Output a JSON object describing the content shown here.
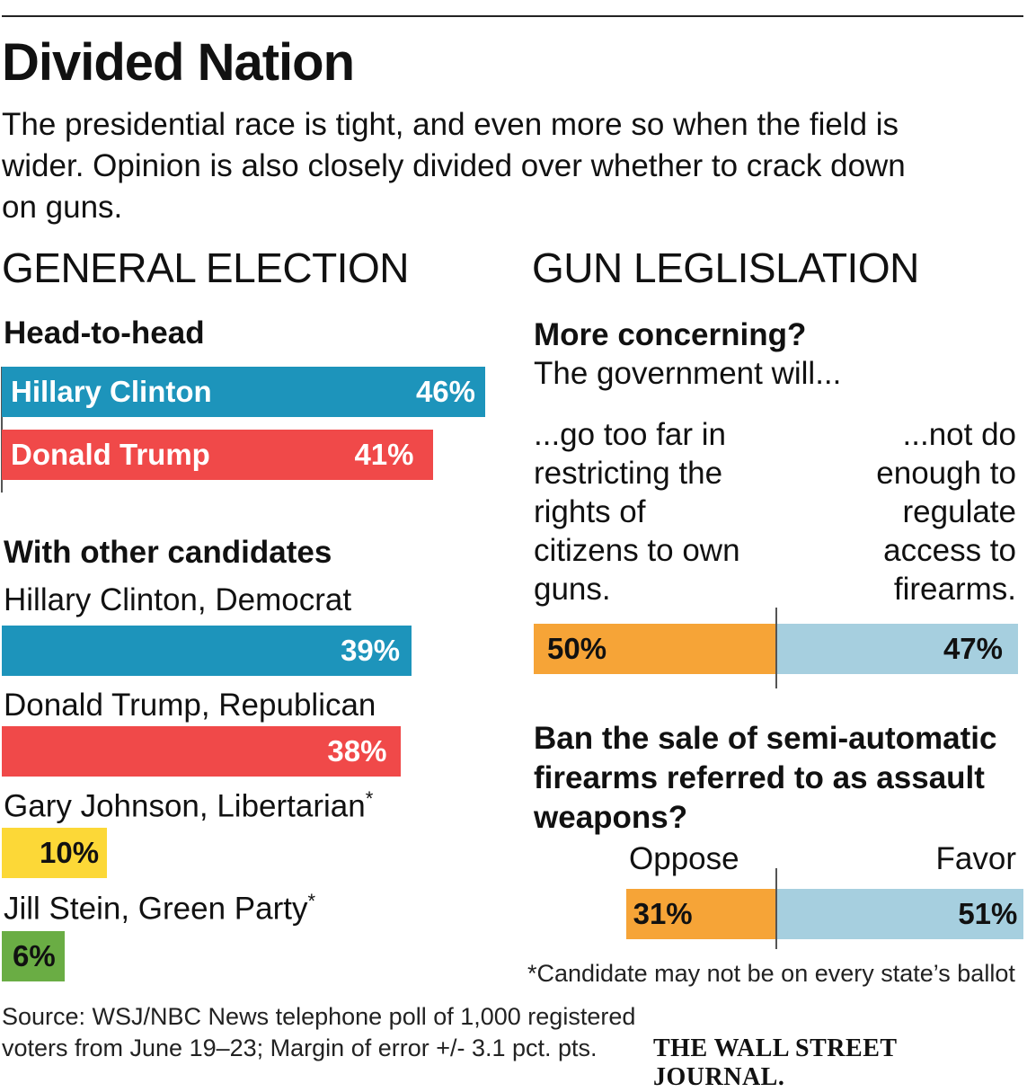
{
  "title": "Divided Nation",
  "subtitle": "The presidential race is tight, and even more so when the field is wider. Opinion is also closely divided over whether to crack down on guns.",
  "colors": {
    "clinton": "#1d94bb",
    "trump": "#f04949",
    "johnson": "#fcd837",
    "stein": "#6aad44",
    "orange": "#f6a437",
    "lightblue": "#a6cfdf"
  },
  "chart_data": [
    {
      "type": "bar",
      "section": "GENERAL ELECTION",
      "title": "Head-to-head",
      "unit": "%",
      "categories": [
        "Hillary Clinton",
        "Donald Trump"
      ],
      "values": [
        46,
        41
      ],
      "labels": [
        "46%",
        "41%"
      ]
    },
    {
      "type": "bar",
      "title": "With other candidates",
      "unit": "%",
      "categories": [
        "Hillary Clinton, Democrat",
        "Donald Trump, Republican",
        "Gary Johnson, Libertarian",
        "Jill Stein, Green Party"
      ],
      "values": [
        39,
        38,
        10,
        6
      ],
      "labels": [
        "39%",
        "38%",
        "10%",
        "6%"
      ],
      "asterisk": [
        false,
        false,
        true,
        true
      ]
    },
    {
      "type": "bar",
      "section": "GUN LEGLISLATION",
      "title": "More concerning?",
      "subtitle": "The government will...",
      "unit": "%",
      "categories": [
        "...go too far in restricting the rights of citizens to own guns.",
        "...not do enough to regulate access to firearms."
      ],
      "values": [
        50,
        47
      ],
      "labels": [
        "50%",
        "47%"
      ]
    },
    {
      "type": "bar",
      "title": "Ban the sale of semi-automatic firearms referred to as assault weapons?",
      "unit": "%",
      "categories": [
        "Oppose",
        "Favor"
      ],
      "values": [
        31,
        51
      ],
      "labels": [
        "31%",
        "51%"
      ]
    }
  ],
  "footnote": "*Candidate may not be on every state’s ballot",
  "asterisk_mark": "*",
  "source": "Source: WSJ/NBC News telephone poll of 1,000 registered voters from June 19–23; Margin of error +/- 3.1 pct. pts.",
  "publisher": "THE WALL STREET JOURNAL."
}
